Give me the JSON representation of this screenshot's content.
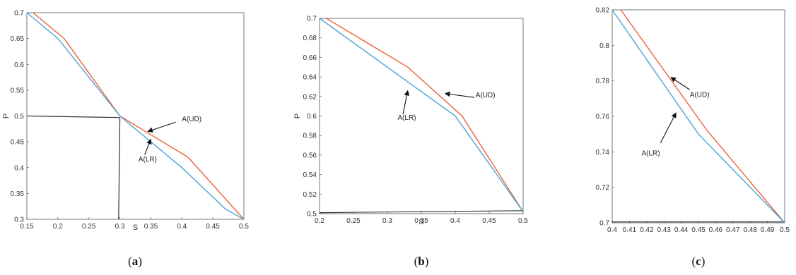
{
  "chart_data": [
    {
      "type": "line",
      "panel_label": "(a)",
      "caption_open": "(",
      "caption_letter": "a",
      "caption_close": ")",
      "xlabel": "S",
      "ylabel": "P",
      "xlim": [
        0.15,
        0.5
      ],
      "ylim": [
        0.3,
        0.7
      ],
      "xticks": [
        0.15,
        0.2,
        0.25,
        0.3,
        0.35,
        0.4,
        0.45,
        0.5
      ],
      "yticks": [
        0.3,
        0.35,
        0.4,
        0.45,
        0.5,
        0.55,
        0.6,
        0.65,
        0.7
      ],
      "xtick_labels": [
        "0.15",
        "0.2",
        "0.25",
        "0.3",
        "0.35",
        "0.4",
        "0.45",
        "0.5"
      ],
      "ytick_labels": [
        "0.3",
        "0.35",
        "0.4",
        "0.45",
        "0.5",
        "0.55",
        "0.6",
        "0.65",
        "0.7"
      ],
      "series": [
        {
          "name": "A(UD)",
          "color": "#e8643a",
          "x": [
            0.16,
            0.21,
            0.3,
            0.41,
            0.5
          ],
          "y": [
            0.7,
            0.65,
            0.5,
            0.42,
            0.3
          ]
        },
        {
          "name": "A(LR)",
          "color": "#4aa3d8",
          "x": [
            0.15,
            0.2,
            0.3,
            0.4,
            0.47,
            0.5
          ],
          "y": [
            0.7,
            0.65,
            0.5,
            0.4,
            0.32,
            0.3
          ]
        }
      ],
      "reference_lines": [
        {
          "color": "#333333",
          "x": [
            0.15,
            0.3
          ],
          "y": [
            0.5,
            0.497
          ]
        },
        {
          "color": "#333333",
          "x": [
            0.3,
            0.298
          ],
          "y": [
            0.497,
            0.3
          ]
        }
      ],
      "annotations": [
        {
          "text": "A(UD)",
          "text_at": [
            0.4,
            0.49
          ],
          "arrow_from": [
            0.39,
            0.488
          ],
          "arrow_to": [
            0.345,
            0.47
          ]
        },
        {
          "text": "A(LR)",
          "text_at": [
            0.33,
            0.412
          ],
          "arrow_from": [
            0.34,
            0.425
          ],
          "arrow_to": [
            0.35,
            0.455
          ]
        }
      ]
    },
    {
      "type": "line",
      "panel_label": "(b)",
      "caption_open": "(",
      "caption_letter": "b",
      "caption_close": ")",
      "xlabel": "S",
      "ylabel": "P",
      "xlim": [
        0.2,
        0.5
      ],
      "ylim": [
        0.5,
        0.7
      ],
      "xticks": [
        0.2,
        0.25,
        0.3,
        0.35,
        0.4,
        0.45,
        0.5
      ],
      "yticks": [
        0.5,
        0.52,
        0.54,
        0.56,
        0.58,
        0.6,
        0.62,
        0.64,
        0.66,
        0.68,
        0.7
      ],
      "xtick_labels": [
        "0.2",
        "0.25",
        "0.3",
        "0.35",
        "0.4",
        "0.45",
        "0.5"
      ],
      "ytick_labels": [
        "0.5",
        "0.52",
        "0.54",
        "0.56",
        "0.58",
        "0.6",
        "0.62",
        "0.64",
        "0.66",
        "0.68",
        "0.7"
      ],
      "series": [
        {
          "name": "A(UD)",
          "color": "#e8643a",
          "x": [
            0.21,
            0.33,
            0.41,
            0.5
          ],
          "y": [
            0.7,
            0.65,
            0.6,
            0.502
          ]
        },
        {
          "name": "A(LR)",
          "color": "#4aa3d8",
          "x": [
            0.2,
            0.4,
            0.5
          ],
          "y": [
            0.7,
            0.6,
            0.502
          ]
        }
      ],
      "reference_lines": [
        {
          "color": "#333333",
          "x": [
            0.2,
            0.5
          ],
          "y": [
            0.501,
            0.503
          ]
        }
      ],
      "annotations": [
        {
          "text": "A(UD)",
          "text_at": [
            0.43,
            0.619
          ],
          "arrow_from": [
            0.428,
            0.619
          ],
          "arrow_to": [
            0.385,
            0.623
          ]
        },
        {
          "text": "A(LR)",
          "text_at": [
            0.315,
            0.596
          ],
          "arrow_from": [
            0.323,
            0.602
          ],
          "arrow_to": [
            0.33,
            0.626
          ]
        }
      ]
    },
    {
      "type": "line",
      "panel_label": "(c)",
      "caption_open": "(",
      "caption_letter": "c",
      "caption_close": ")",
      "xlabel": "",
      "ylabel": "",
      "xlim": [
        0.4,
        0.5
      ],
      "ylim": [
        0.7,
        0.82
      ],
      "xticks": [
        0.4,
        0.41,
        0.42,
        0.43,
        0.44,
        0.45,
        0.46,
        0.47,
        0.48,
        0.49,
        0.5
      ],
      "yticks": [
        0.7,
        0.72,
        0.74,
        0.76,
        0.78,
        0.8,
        0.82
      ],
      "xtick_labels": [
        "0.4",
        "0.41",
        "0.42",
        "0.43",
        "0.44",
        "0.45",
        "0.46",
        "0.47",
        "0.48",
        "0.49",
        "0.5"
      ],
      "ytick_labels": [
        "0.7",
        "0.72",
        "0.74",
        "0.76",
        "0.78",
        "0.8",
        "0.82"
      ],
      "series": [
        {
          "name": "A(UD)",
          "color": "#e8643a",
          "x": [
            0.405,
            0.455,
            0.5
          ],
          "y": [
            0.82,
            0.752,
            0.7
          ]
        },
        {
          "name": "A(LR)",
          "color": "#4aa3d8",
          "x": [
            0.4,
            0.45,
            0.5
          ],
          "y": [
            0.82,
            0.75,
            0.7
          ]
        }
      ],
      "reference_lines": [
        {
          "color": "#333333",
          "x": [
            0.4,
            0.5
          ],
          "y": [
            0.7005,
            0.7005
          ]
        }
      ],
      "annotations": [
        {
          "text": "A(UD)",
          "text_at": [
            0.445,
            0.771
          ],
          "arrow_from": [
            0.445,
            0.775
          ],
          "arrow_to": [
            0.434,
            0.782
          ]
        },
        {
          "text": "A(LR)",
          "text_at": [
            0.417,
            0.738
          ],
          "arrow_from": [
            0.428,
            0.745
          ],
          "arrow_to": [
            0.437,
            0.762
          ]
        }
      ]
    }
  ]
}
